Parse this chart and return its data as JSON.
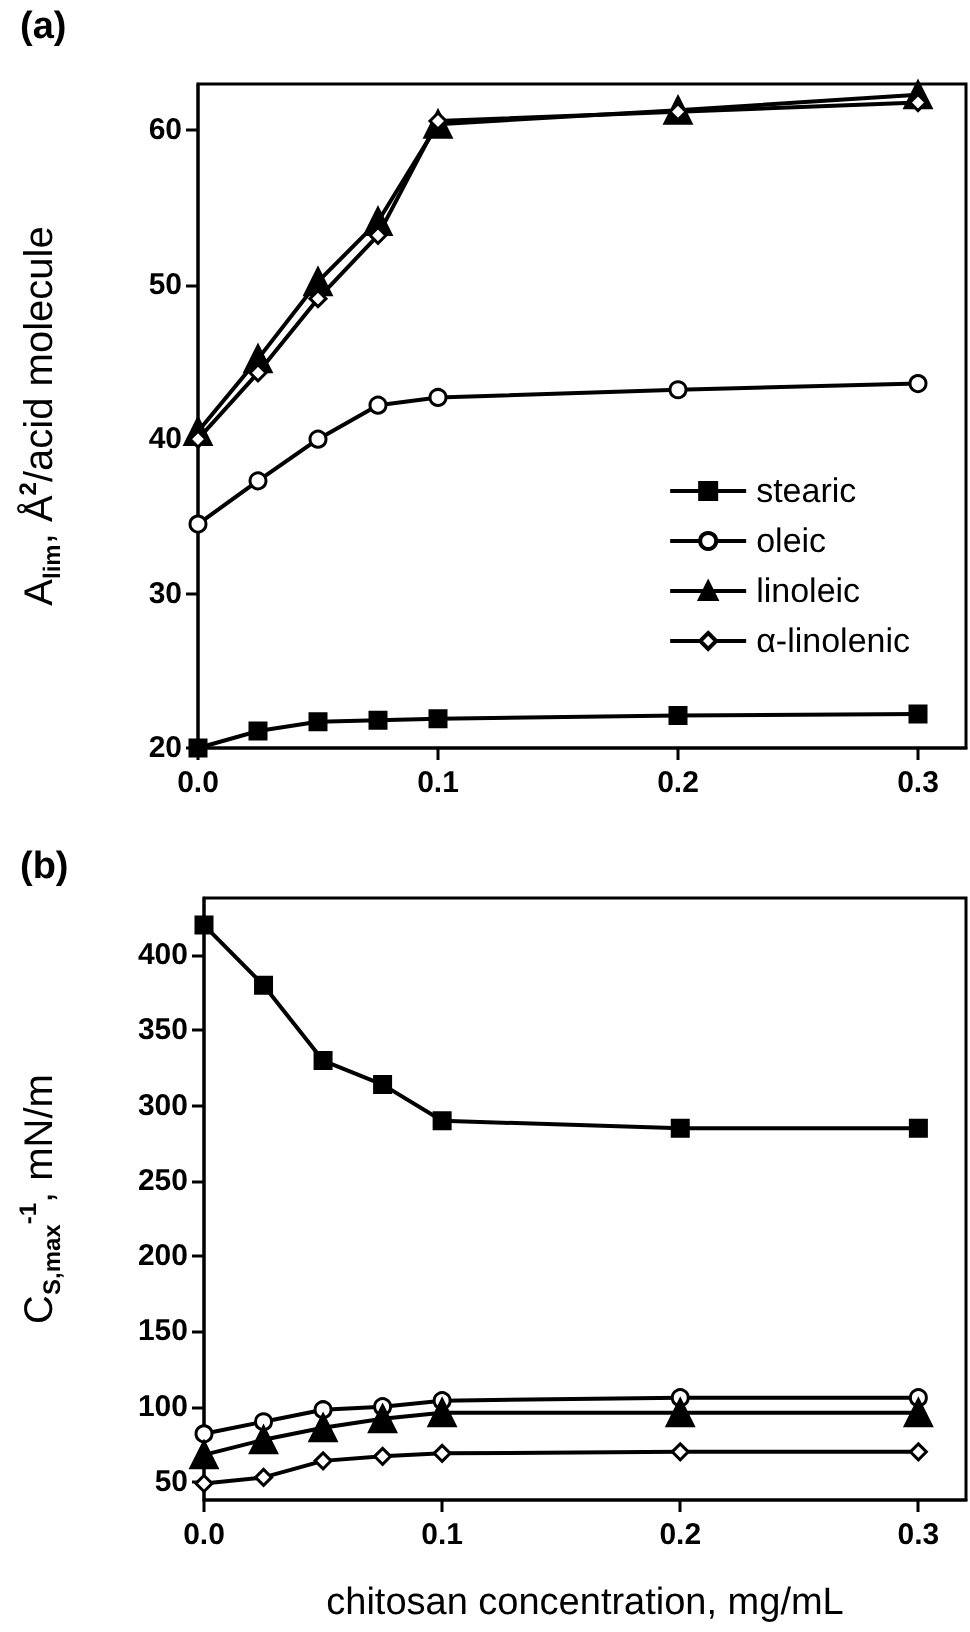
{
  "chart_data": [
    {
      "type": "line",
      "ylabel": "A$_{lim}$, Å$^{2}$/acid molecule",
      "annotations": [
        "(a)"
      ],
      "x": [
        0,
        0.025,
        0.05,
        0.075,
        0.1,
        0.2,
        0.3
      ],
      "series": [
        {
          "name": "stearic",
          "color": "#000000",
          "marker": "square",
          "values": [
            20,
            21.1,
            21.7,
            21.8,
            21.9,
            22.1,
            22.2
          ]
        },
        {
          "name": "oleic",
          "color": "#000000",
          "marker": "circle",
          "values": [
            34.5,
            37.3,
            40,
            42.2,
            42.7,
            43.2,
            43.6
          ]
        },
        {
          "name": "linoleic",
          "color": "#000000",
          "marker": "triangle",
          "values": [
            40.5,
            45.2,
            50.2,
            54.1,
            60.4,
            61.3,
            62.3
          ]
        },
        {
          "name": "α-linolenic",
          "color": "#000000",
          "marker": "diamond",
          "values": [
            40,
            44.3,
            49.1,
            53.2,
            60.6,
            61.2,
            61.8
          ]
        }
      ],
      "xlim": [
        0,
        0.32
      ],
      "xticks": [
        {
          "value": 0,
          "label": "0.0"
        },
        0.1,
        0.2,
        0.3
      ],
      "ylim": [
        20,
        63
      ],
      "yticks": [
        20,
        30,
        40,
        50,
        60
      ],
      "legend": "right",
      "line_style": "solid"
    },
    {
      "type": "line",
      "xlabel": "chitosan concentration, mg/mL",
      "ylabel": "C$_{S,max}$$^{-1}$, mN/m",
      "annotations": [
        "(b)"
      ],
      "x": [
        0,
        0.025,
        0.05,
        0.075,
        0.1,
        0.2,
        0.3
      ],
      "series": [
        {
          "color": "#000000",
          "marker": "square",
          "values": [
            420,
            380,
            330,
            314,
            290,
            285,
            285
          ]
        },
        {
          "color": "#000000",
          "marker": "circle",
          "values": [
            82,
            90,
            98,
            100,
            104,
            106,
            106
          ]
        },
        {
          "color": "#000000",
          "marker": "triangle",
          "values": [
            68,
            78,
            86,
            92,
            96,
            96,
            96
          ]
        },
        {
          "color": "#000000",
          "marker": "diamond",
          "values": [
            49,
            53,
            64,
            67,
            69,
            70,
            70
          ]
        }
      ],
      "xlim": [
        0,
        0.32
      ],
      "xticks": [
        {
          "value": 0,
          "label": "0.0"
        },
        0.1,
        0.2,
        0.3
      ],
      "ylim": [
        38,
        438
      ],
      "yticks": [
        50,
        100,
        150,
        200,
        250,
        300,
        350,
        400
      ],
      "legend": false,
      "line_style": "solid"
    }
  ]
}
